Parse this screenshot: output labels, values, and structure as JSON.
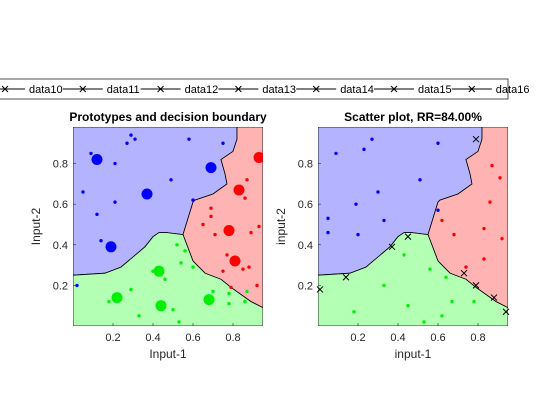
{
  "chart_data": [
    {
      "type": "scatter",
      "title": "Prototypes and decision boundary",
      "xlabel": "Input-1",
      "ylabel": "Input-2",
      "xlim": [
        0,
        0.95
      ],
      "ylim": [
        0,
        0.98
      ],
      "xticks": [
        0.2,
        0.4,
        0.6,
        0.8
      ],
      "yticks": [
        0.2,
        0.4,
        0.6,
        0.8
      ],
      "grid": false,
      "regions": {
        "blue": {
          "color": "#b3b3ff",
          "poly": [
            [
              0,
              0.25
            ],
            [
              0.16,
              0.26
            ],
            [
              0.24,
              0.29
            ],
            [
              0.3,
              0.34
            ],
            [
              0.36,
              0.39
            ],
            [
              0.4,
              0.44
            ],
            [
              0.43,
              0.46
            ],
            [
              0.47,
              0.46
            ],
            [
              0.55,
              0.45
            ],
            [
              0.6,
              0.61
            ],
            [
              0.61,
              0.62
            ],
            [
              0.7,
              0.65
            ],
            [
              0.77,
              0.7
            ],
            [
              0.76,
              0.75
            ],
            [
              0.74,
              0.82
            ],
            [
              0.8,
              0.86
            ],
            [
              0.82,
              0.92
            ],
            [
              0.82,
              0.98
            ],
            [
              0,
              0.98
            ]
          ]
        },
        "red": {
          "color": "#ffb3b3",
          "poly": [
            [
              0.82,
              0.98
            ],
            [
              0.95,
              0.98
            ],
            [
              0.95,
              0.09
            ],
            [
              0.89,
              0.12
            ],
            [
              0.79,
              0.19
            ],
            [
              0.74,
              0.23
            ],
            [
              0.66,
              0.26
            ],
            [
              0.6,
              0.32
            ],
            [
              0.55,
              0.45
            ],
            [
              0.6,
              0.61
            ],
            [
              0.61,
              0.62
            ],
            [
              0.7,
              0.65
            ],
            [
              0.77,
              0.7
            ],
            [
              0.76,
              0.75
            ],
            [
              0.74,
              0.82
            ],
            [
              0.8,
              0.86
            ],
            [
              0.82,
              0.92
            ]
          ]
        },
        "green": {
          "color": "#b3ffb3",
          "poly": [
            [
              0,
              0
            ],
            [
              0.95,
              0
            ],
            [
              0.95,
              0.09
            ],
            [
              0.89,
              0.12
            ],
            [
              0.79,
              0.19
            ],
            [
              0.74,
              0.23
            ],
            [
              0.66,
              0.26
            ],
            [
              0.6,
              0.32
            ],
            [
              0.55,
              0.45
            ],
            [
              0.47,
              0.46
            ],
            [
              0.43,
              0.46
            ],
            [
              0.4,
              0.44
            ],
            [
              0.36,
              0.39
            ],
            [
              0.3,
              0.34
            ],
            [
              0.24,
              0.29
            ],
            [
              0.16,
              0.26
            ],
            [
              0,
              0.25
            ]
          ]
        }
      },
      "prototypes": [
        {
          "class": "blue",
          "x": 0.12,
          "y": 0.82
        },
        {
          "class": "blue",
          "x": 0.37,
          "y": 0.65
        },
        {
          "class": "blue",
          "x": 0.69,
          "y": 0.78
        },
        {
          "class": "blue",
          "x": 0.19,
          "y": 0.39
        },
        {
          "class": "red",
          "x": 0.93,
          "y": 0.83
        },
        {
          "class": "red",
          "x": 0.83,
          "y": 0.67
        },
        {
          "class": "red",
          "x": 0.78,
          "y": 0.47
        },
        {
          "class": "red",
          "x": 0.81,
          "y": 0.32
        },
        {
          "class": "green",
          "x": 0.43,
          "y": 0.27
        },
        {
          "class": "green",
          "x": 0.22,
          "y": 0.14
        },
        {
          "class": "green",
          "x": 0.44,
          "y": 0.1
        },
        {
          "class": "green",
          "x": 0.68,
          "y": 0.13
        }
      ],
      "samples": [
        {
          "class": "blue",
          "x": 0.29,
          "y": 0.94
        },
        {
          "class": "blue",
          "x": 0.31,
          "y": 0.92
        },
        {
          "class": "blue",
          "x": 0.27,
          "y": 0.9
        },
        {
          "class": "blue",
          "x": 0.09,
          "y": 0.85
        },
        {
          "class": "blue",
          "x": 0.05,
          "y": 0.66
        },
        {
          "class": "blue",
          "x": 0.12,
          "y": 0.55
        },
        {
          "class": "blue",
          "x": 0.21,
          "y": 0.61
        },
        {
          "class": "blue",
          "x": 0.14,
          "y": 0.42
        },
        {
          "class": "blue",
          "x": 0.49,
          "y": 0.72
        },
        {
          "class": "blue",
          "x": 0.58,
          "y": 0.92
        },
        {
          "class": "blue",
          "x": 0.6,
          "y": 0.62
        },
        {
          "class": "blue",
          "x": 0.21,
          "y": 0.8
        },
        {
          "class": "blue",
          "x": 0.02,
          "y": 0.2
        },
        {
          "class": "blue",
          "x": 0.75,
          "y": 0.9
        },
        {
          "class": "red",
          "x": 0.65,
          "y": 0.5
        },
        {
          "class": "red",
          "x": 0.89,
          "y": 0.46
        },
        {
          "class": "red",
          "x": 0.87,
          "y": 0.72
        },
        {
          "class": "red",
          "x": 0.93,
          "y": 0.49
        },
        {
          "class": "red",
          "x": 0.86,
          "y": 0.63
        },
        {
          "class": "red",
          "x": 0.69,
          "y": 0.58
        },
        {
          "class": "red",
          "x": 0.69,
          "y": 0.54
        },
        {
          "class": "red",
          "x": 0.88,
          "y": 0.29
        },
        {
          "class": "red",
          "x": 0.92,
          "y": 0.2
        },
        {
          "class": "red",
          "x": 0.71,
          "y": 0.45
        },
        {
          "class": "red",
          "x": 0.77,
          "y": 0.35
        },
        {
          "class": "red",
          "x": 0.85,
          "y": 0.28
        },
        {
          "class": "red",
          "x": 0.79,
          "y": 0.19
        },
        {
          "class": "red",
          "x": 0.75,
          "y": 0.27
        },
        {
          "class": "green",
          "x": 0.52,
          "y": 0.4
        },
        {
          "class": "green",
          "x": 0.56,
          "y": 0.37
        },
        {
          "class": "green",
          "x": 0.54,
          "y": 0.31
        },
        {
          "class": "green",
          "x": 0.6,
          "y": 0.29
        },
        {
          "class": "green",
          "x": 0.46,
          "y": 0.23
        },
        {
          "class": "green",
          "x": 0.29,
          "y": 0.18
        },
        {
          "class": "green",
          "x": 0.18,
          "y": 0.12
        },
        {
          "class": "green",
          "x": 0.33,
          "y": 0.05
        },
        {
          "class": "green",
          "x": 0.4,
          "y": 0.27
        },
        {
          "class": "green",
          "x": 0.7,
          "y": 0.17
        },
        {
          "class": "green",
          "x": 0.78,
          "y": 0.16
        },
        {
          "class": "green",
          "x": 0.86,
          "y": 0.12
        },
        {
          "class": "green",
          "x": 0.78,
          "y": 0.11
        },
        {
          "class": "green",
          "x": 0.53,
          "y": 0.02
        },
        {
          "class": "green",
          "x": 0.87,
          "y": 0.17
        },
        {
          "class": "green",
          "x": 0.5,
          "y": 0.08
        }
      ]
    },
    {
      "type": "scatter",
      "title": "Scatter plot, RR=84.00%",
      "xlabel": "input-1",
      "ylabel": "input-2",
      "xlim": [
        0,
        0.95
      ],
      "ylim": [
        0,
        0.98
      ],
      "xticks": [
        0.2,
        0.4,
        0.6,
        0.8
      ],
      "yticks": [
        0.2,
        0.4,
        0.6,
        0.8
      ],
      "grid": false,
      "misclassified": [
        {
          "x": 0.01,
          "y": 0.18
        },
        {
          "x": 0.14,
          "y": 0.24
        },
        {
          "x": 0.37,
          "y": 0.39
        },
        {
          "x": 0.45,
          "y": 0.44
        },
        {
          "x": 0.73,
          "y": 0.26
        },
        {
          "x": 0.79,
          "y": 0.2
        },
        {
          "x": 0.79,
          "y": 0.92
        },
        {
          "x": 0.88,
          "y": 0.14
        },
        {
          "x": 0.94,
          "y": 0.07
        }
      ],
      "samples": [
        {
          "class": "blue",
          "x": 0.27,
          "y": 0.92
        },
        {
          "class": "blue",
          "x": 0.23,
          "y": 0.87
        },
        {
          "class": "blue",
          "x": 0.09,
          "y": 0.85
        },
        {
          "class": "blue",
          "x": 0.6,
          "y": 0.9
        },
        {
          "class": "blue",
          "x": 0.51,
          "y": 0.72
        },
        {
          "class": "blue",
          "x": 0.3,
          "y": 0.66
        },
        {
          "class": "blue",
          "x": 0.19,
          "y": 0.6
        },
        {
          "class": "blue",
          "x": 0.6,
          "y": 0.57
        },
        {
          "class": "blue",
          "x": 0.05,
          "y": 0.53
        },
        {
          "class": "blue",
          "x": 0.2,
          "y": 0.45
        },
        {
          "class": "blue",
          "x": 0.33,
          "y": 0.52
        },
        {
          "class": "blue",
          "x": 0.05,
          "y": 0.46
        },
        {
          "class": "red",
          "x": 0.87,
          "y": 0.79
        },
        {
          "class": "red",
          "x": 0.91,
          "y": 0.73
        },
        {
          "class": "red",
          "x": 0.86,
          "y": 0.61
        },
        {
          "class": "red",
          "x": 0.62,
          "y": 0.52
        },
        {
          "class": "red",
          "x": 0.83,
          "y": 0.48
        },
        {
          "class": "red",
          "x": 0.92,
          "y": 0.43
        },
        {
          "class": "red",
          "x": 0.68,
          "y": 0.45
        },
        {
          "class": "red",
          "x": 0.83,
          "y": 0.33
        },
        {
          "class": "red",
          "x": 0.74,
          "y": 0.29
        },
        {
          "class": "green",
          "x": 0.43,
          "y": 0.35
        },
        {
          "class": "green",
          "x": 0.56,
          "y": 0.28
        },
        {
          "class": "green",
          "x": 0.64,
          "y": 0.24
        },
        {
          "class": "green",
          "x": 0.33,
          "y": 0.2
        },
        {
          "class": "green",
          "x": 0.45,
          "y": 0.1
        },
        {
          "class": "green",
          "x": 0.67,
          "y": 0.12
        },
        {
          "class": "green",
          "x": 0.53,
          "y": 0.02
        },
        {
          "class": "green",
          "x": 0.78,
          "y": 0.12
        },
        {
          "class": "green",
          "x": 0.18,
          "y": 0.07
        },
        {
          "class": "green",
          "x": 0.62,
          "y": 0.05
        }
      ]
    }
  ],
  "legend": {
    "placement": "top",
    "entries": [
      "data10",
      "data11",
      "data12",
      "data13",
      "data14",
      "data15",
      "data16"
    ]
  },
  "colors": {
    "blue_region": "#b3b3ff",
    "red_region": "#ffb3b3",
    "green_region": "#b3ffb3",
    "blue_point": "#0000ff",
    "red_point": "#ff0000",
    "green_point": "#00ee00",
    "boundary": "#000000"
  }
}
